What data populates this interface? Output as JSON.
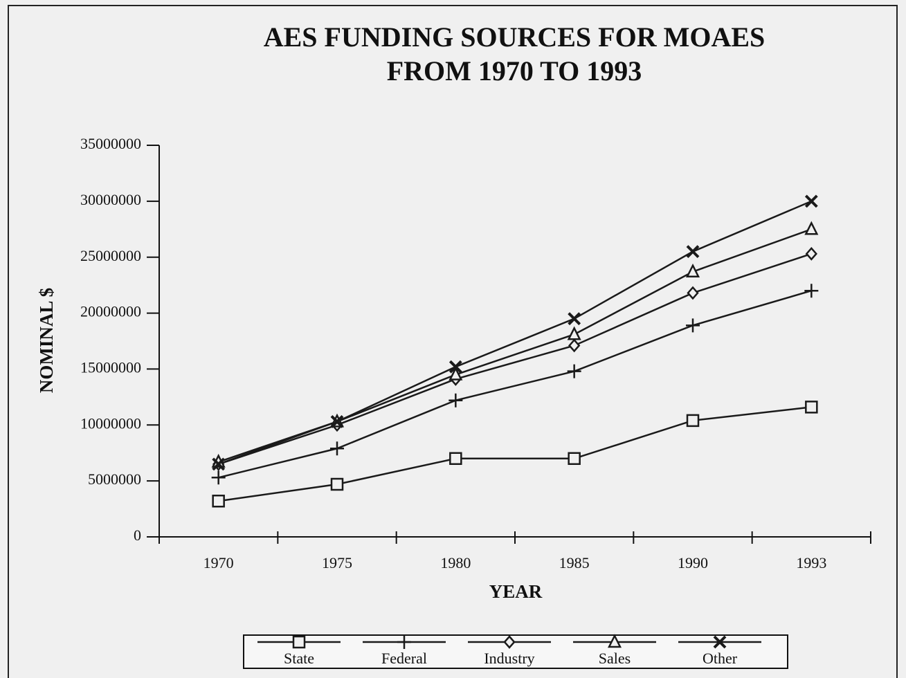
{
  "chart_data": {
    "type": "line",
    "title": [
      "AES FUNDING SOURCES FOR MOAES",
      "FROM 1970 TO 1993"
    ],
    "x_label": "YEAR",
    "y_label": "NOMINAL $",
    "categories": [
      "1970",
      "1975",
      "1980",
      "1985",
      "1990",
      "1993"
    ],
    "series": [
      {
        "name": "State",
        "color": "#1a1a1a",
        "marker": "square",
        "values": [
          3200000,
          4700000,
          7000000,
          7000000,
          10400000,
          11600000
        ]
      },
      {
        "name": "Federal",
        "color": "#1a1a1a",
        "marker": "plus",
        "values": [
          5300000,
          7900000,
          12200000,
          14800000,
          18900000,
          22000000
        ]
      },
      {
        "name": "Industry",
        "color": "#1a1a1a",
        "marker": "diamond",
        "values": [
          6500000,
          10000000,
          14100000,
          17100000,
          21800000,
          25300000
        ]
      },
      {
        "name": "Sales",
        "color": "#1a1a1a",
        "marker": "triangle",
        "values": [
          6700000,
          10300000,
          14500000,
          18100000,
          23700000,
          27500000
        ]
      },
      {
        "name": "Other",
        "color": "#1a1a1a",
        "marker": "x",
        "values": [
          6500000,
          10300000,
          15200000,
          19500000,
          25500000,
          30000000
        ]
      }
    ],
    "ylim": [
      0,
      35000000
    ],
    "yticks": [
      0,
      5000000,
      10000000,
      15000000,
      20000000,
      25000000,
      30000000,
      35000000
    ],
    "grid": false,
    "legend": "bottom"
  }
}
